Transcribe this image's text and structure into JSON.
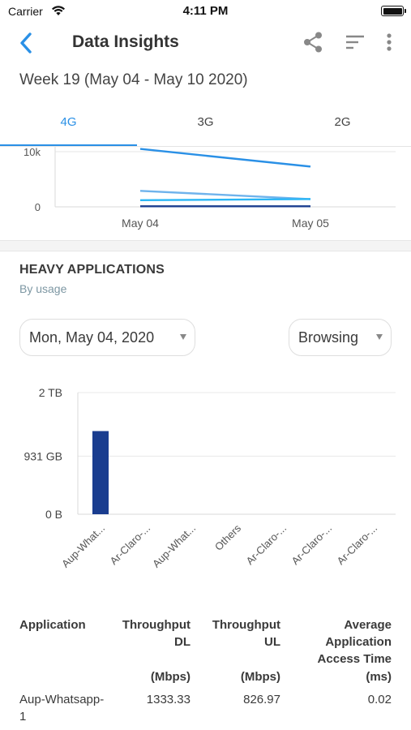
{
  "status_bar": {
    "carrier": "Carrier",
    "time": "4:11 PM"
  },
  "nav": {
    "title": "Data Insights",
    "back_icon": "chevron-left-icon",
    "share_icon": "share-icon",
    "sort_icon": "sort-icon",
    "more_icon": "more-vertical-icon",
    "accent_color": "#2a90e6"
  },
  "week_label": "Week 19 (May 04 - May 10 2020)",
  "tabs": [
    {
      "label": "4G",
      "active": true
    },
    {
      "label": "3G",
      "active": false
    },
    {
      "label": "2G",
      "active": false
    }
  ],
  "chart_data": [
    {
      "type": "line",
      "categories": [
        "May 04",
        "May 05"
      ],
      "y_tick_labels": [
        "10k",
        "0"
      ],
      "ylim": [
        0,
        10000
      ],
      "grid": true,
      "series": [
        {
          "values": [
            10500,
            7300
          ],
          "color": "#2a90e6"
        },
        {
          "values": [
            2900,
            1400
          ],
          "color": "#6fb3ec"
        },
        {
          "values": [
            1200,
            1400
          ],
          "color": "#29b6f6"
        },
        {
          "values": [
            100,
            100
          ],
          "color": "#1a3d8f"
        }
      ]
    },
    {
      "type": "bar",
      "categories": [
        "Aup-What...",
        "Ar-Claro-...",
        "Aup-What...",
        "Others",
        "Ar-Claro-...",
        "Ar-Claro-...",
        "Ar-Claro-..."
      ],
      "values": [
        1333,
        0,
        0,
        0,
        0,
        0,
        0
      ],
      "ylim": [
        0,
        1950
      ],
      "y_ticks": [
        0,
        931,
        1950
      ],
      "y_tick_labels": [
        "0 B",
        "931 GB",
        "2 TB"
      ],
      "bar_color": "#1a3d8f",
      "grid": true
    }
  ],
  "heavy_apps": {
    "title": "HEAVY APPLICATIONS",
    "subtitle": "By usage",
    "date_selector": "Mon, May 04, 2020",
    "category_selector": "Browsing"
  },
  "table": {
    "headers": {
      "application": "Application",
      "throughput_dl": "Throughput DL",
      "throughput_dl_unit": "(Mbps)",
      "throughput_ul": "Throughput UL",
      "throughput_ul_unit": "(Mbps)",
      "avg_access": "Average Application Access Time",
      "avg_access_unit": "(ms)"
    },
    "rows": [
      {
        "application": "Aup-Whatsapp-1",
        "dl": "1333.33",
        "ul": "826.97",
        "avg": "0.02"
      }
    ]
  }
}
